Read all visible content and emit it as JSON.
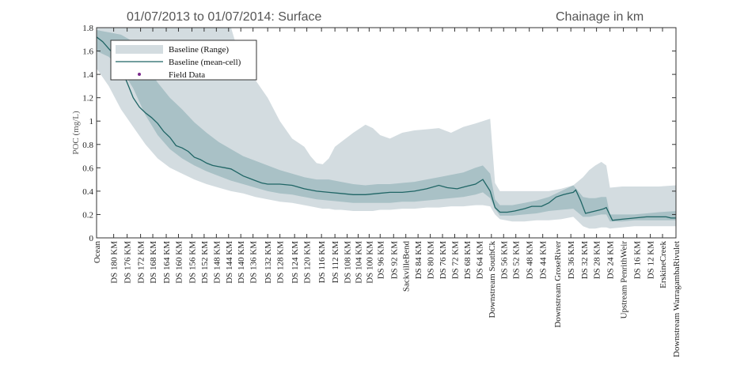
{
  "header": {
    "title": "01/07/2013 to 01/07/2014: Surface",
    "subtitle": "Chainage in km"
  },
  "chart_data": {
    "type": "area",
    "title": "01/07/2013 to 01/07/2014: Surface",
    "xlabel": "Chainage in km",
    "ylabel": "POC (mg/L)",
    "ylim": [
      0,
      1.8
    ],
    "yticks": [
      0,
      0.2,
      0.4,
      0.6,
      0.8,
      1,
      1.2,
      1.4,
      1.6,
      1.8
    ],
    "grid": false,
    "legend_position": "top-left",
    "colors": {
      "range_outer": "#d3dce0",
      "range_inner": "#a9c1c6",
      "mean_line": "#1f6565",
      "field_data": "#7b2a8c"
    },
    "legend": [
      {
        "label": "Baseline (Range)",
        "kind": "patch"
      },
      {
        "label": "Baseline (mean-cell)",
        "kind": "line"
      },
      {
        "label": "Field Data",
        "kind": "marker"
      }
    ],
    "categories": [
      "Ocean",
      "DS 180 KM",
      "DS 176 KM",
      "DS 172 KM",
      "DS 168 KM",
      "DS 164 KM",
      "DS 160 KM",
      "DS 156 KM",
      "DS 152 KM",
      "DS 148 KM",
      "DS 144 KM",
      "DS 140 KM",
      "DS 136 KM",
      "DS 132 KM",
      "DS 128 KM",
      "DS 124 KM",
      "DS 120 KM",
      "DS 116 KM",
      "DS 112 KM",
      "DS 108 KM",
      "DS 104 KM",
      "DS 100 KM",
      "DS 96 KM",
      "DS 92 KM",
      "SackvilleBend",
      "DS 84 KM",
      "DS 80 KM",
      "DS 76 KM",
      "DS 72 KM",
      "DS 68 KM",
      "DS 64 KM",
      "Downstream SouthCk",
      "DS 56 KM",
      "DS 52 KM",
      "DS 48 KM",
      "DS 44 KM",
      "Downstream GroseRiver",
      "DS 36 KM",
      "DS 32 KM",
      "DS 28 KM",
      "DS 24 KM",
      "Upstream PenrithWeir",
      "DS 16 KM",
      "DS 12 KM",
      "ErskineCreek",
      "Downstream WarragambaRivulet"
    ],
    "category_positions": [
      0,
      1.4,
      2.5,
      3.6,
      4.6,
      5.7,
      6.7,
      7.8,
      8.8,
      9.8,
      10.8,
      11.8,
      12.8,
      14.0,
      15.0,
      16.2,
      17.2,
      18.4,
      19.5,
      20.5,
      21.4,
      22.3,
      23.2,
      24.3,
      25.3,
      26.3,
      27.3,
      28.3,
      29.3,
      30.3,
      31.3,
      32.3,
      33.3,
      34.3,
      35.4,
      36.5,
      37.7,
      38.8,
      39.9,
      40.9,
      42.0,
      43.1,
      44.2,
      45.3,
      46.3,
      47.4
    ],
    "x_range": [
      0,
      47.4
    ],
    "series": [
      {
        "name": "Baseline (mean-cell)",
        "x": [
          0,
          0.5,
          1.0,
          1.5,
          2.0,
          2.5,
          3.0,
          3.5,
          4.0,
          4.5,
          5.0,
          5.5,
          6.0,
          6.5,
          7.0,
          7.5,
          8.0,
          8.5,
          9.0,
          9.5,
          10.0,
          10.5,
          11.0,
          11.5,
          12.0,
          12.5,
          13.0,
          13.5,
          14.0,
          14.5,
          15.0,
          16.0,
          17.0,
          18.0,
          19.0,
          20.0,
          21.0,
          22.0,
          23.0,
          24.0,
          25.0,
          26.0,
          27.0,
          28.0,
          28.7,
          29.5,
          30.2,
          31.0,
          31.6,
          32.2,
          32.6,
          33.0,
          33.6,
          34.2,
          35.0,
          35.6,
          36.4,
          37.0,
          37.6,
          38.2,
          38.6,
          39.0,
          39.2,
          39.6,
          40.0,
          40.4,
          40.8,
          41.2,
          41.5,
          41.7,
          42.2,
          43.0,
          44.0,
          45.0,
          46.0,
          46.6,
          47.0,
          47.4
        ],
        "y": [
          1.72,
          1.68,
          1.62,
          1.56,
          1.45,
          1.33,
          1.2,
          1.12,
          1.07,
          1.03,
          0.98,
          0.91,
          0.86,
          0.79,
          0.77,
          0.74,
          0.69,
          0.67,
          0.64,
          0.62,
          0.61,
          0.6,
          0.59,
          0.56,
          0.53,
          0.51,
          0.49,
          0.47,
          0.46,
          0.46,
          0.46,
          0.45,
          0.42,
          0.4,
          0.39,
          0.38,
          0.37,
          0.37,
          0.38,
          0.39,
          0.39,
          0.4,
          0.42,
          0.45,
          0.43,
          0.42,
          0.44,
          0.46,
          0.5,
          0.4,
          0.26,
          0.22,
          0.22,
          0.23,
          0.25,
          0.27,
          0.27,
          0.3,
          0.35,
          0.37,
          0.38,
          0.39,
          0.41,
          0.32,
          0.21,
          0.22,
          0.23,
          0.24,
          0.25,
          0.26,
          0.15,
          0.16,
          0.17,
          0.18,
          0.18,
          0.18,
          0.17,
          0.17
        ]
      },
      {
        "name": "Baseline (Range)",
        "x": [
          0,
          1.0,
          2.0,
          3.0,
          4.0,
          5.0,
          6.0,
          7.0,
          8.0,
          9.0,
          10.0,
          11.0,
          12.0,
          13.0,
          14.0,
          15.0,
          16.0,
          17.0,
          17.5,
          18.0,
          18.5,
          19.0,
          19.5,
          20.0,
          21.0,
          22.0,
          22.6,
          23.2,
          24.0,
          25.0,
          26.0,
          27.0,
          28.0,
          29.0,
          30.0,
          31.0,
          31.6,
          32.2,
          32.6,
          33.0,
          34.0,
          35.0,
          36.0,
          37.0,
          38.0,
          39.0,
          39.8,
          40.3,
          40.8,
          41.3,
          41.7,
          42.0,
          43.0,
          44.0,
          45.0,
          46.0,
          47.4
        ],
        "low": [
          1.45,
          1.3,
          1.1,
          0.95,
          0.8,
          0.68,
          0.6,
          0.55,
          0.5,
          0.46,
          0.43,
          0.4,
          0.38,
          0.35,
          0.33,
          0.31,
          0.3,
          0.28,
          0.27,
          0.26,
          0.25,
          0.25,
          0.24,
          0.24,
          0.23,
          0.23,
          0.23,
          0.24,
          0.24,
          0.25,
          0.25,
          0.26,
          0.26,
          0.27,
          0.27,
          0.28,
          0.28,
          0.27,
          0.2,
          0.16,
          0.14,
          0.14,
          0.15,
          0.15,
          0.16,
          0.18,
          0.1,
          0.08,
          0.08,
          0.09,
          0.09,
          0.08,
          0.09,
          0.1,
          0.1,
          0.1,
          0.1
        ],
        "high": [
          1.8,
          1.8,
          1.8,
          1.8,
          1.8,
          1.8,
          1.8,
          1.8,
          1.8,
          1.8,
          1.8,
          1.8,
          1.45,
          1.35,
          1.2,
          1.0,
          0.85,
          0.78,
          0.7,
          0.64,
          0.63,
          0.68,
          0.78,
          0.82,
          0.9,
          0.97,
          0.94,
          0.88,
          0.85,
          0.9,
          0.92,
          0.93,
          0.94,
          0.9,
          0.95,
          0.98,
          1.0,
          1.02,
          0.47,
          0.4,
          0.4,
          0.4,
          0.4,
          0.4,
          0.42,
          0.45,
          0.52,
          0.58,
          0.62,
          0.65,
          0.62,
          0.43,
          0.44,
          0.44,
          0.44,
          0.44,
          0.45
        ]
      },
      {
        "name": "Baseline (Range)",
        "x": [
          0,
          1.0,
          2.0,
          3.0,
          4.0,
          5.0,
          6.0,
          7.0,
          8.0,
          9.0,
          10.0,
          11.0,
          12.0,
          13.0,
          14.0,
          15.0,
          16.0,
          17.0,
          18.0,
          19.0,
          20.0,
          21.0,
          22.0,
          23.0,
          24.0,
          25.0,
          26.0,
          27.0,
          28.0,
          29.0,
          30.0,
          31.0,
          31.6,
          32.2,
          32.6,
          33.0,
          34.0,
          35.0,
          36.0,
          37.0,
          38.0,
          39.0,
          39.8,
          40.3,
          40.8,
          41.3,
          41.7,
          42.0,
          43.0,
          44.0,
          45.0,
          46.0,
          47.4
        ],
        "low": [
          1.6,
          1.55,
          1.45,
          1.28,
          1.05,
          0.88,
          0.76,
          0.68,
          0.62,
          0.57,
          0.53,
          0.49,
          0.46,
          0.43,
          0.4,
          0.38,
          0.37,
          0.35,
          0.33,
          0.32,
          0.31,
          0.3,
          0.3,
          0.3,
          0.3,
          0.31,
          0.31,
          0.32,
          0.33,
          0.34,
          0.35,
          0.37,
          0.39,
          0.34,
          0.25,
          0.19,
          0.19,
          0.2,
          0.21,
          0.23,
          0.24,
          0.25,
          0.18,
          0.18,
          0.19,
          0.2,
          0.2,
          0.14,
          0.14,
          0.15,
          0.15,
          0.15,
          0.15
        ],
        "high": [
          1.78,
          1.76,
          1.74,
          1.68,
          1.48,
          1.33,
          1.2,
          1.1,
          0.99,
          0.9,
          0.82,
          0.76,
          0.7,
          0.66,
          0.62,
          0.58,
          0.55,
          0.52,
          0.5,
          0.5,
          0.48,
          0.46,
          0.45,
          0.46,
          0.46,
          0.47,
          0.48,
          0.5,
          0.52,
          0.54,
          0.56,
          0.6,
          0.62,
          0.55,
          0.33,
          0.28,
          0.28,
          0.3,
          0.32,
          0.35,
          0.4,
          0.45,
          0.35,
          0.34,
          0.34,
          0.35,
          0.35,
          0.2,
          0.2,
          0.2,
          0.21,
          0.22,
          0.23
        ]
      }
    ],
    "field_data": []
  }
}
